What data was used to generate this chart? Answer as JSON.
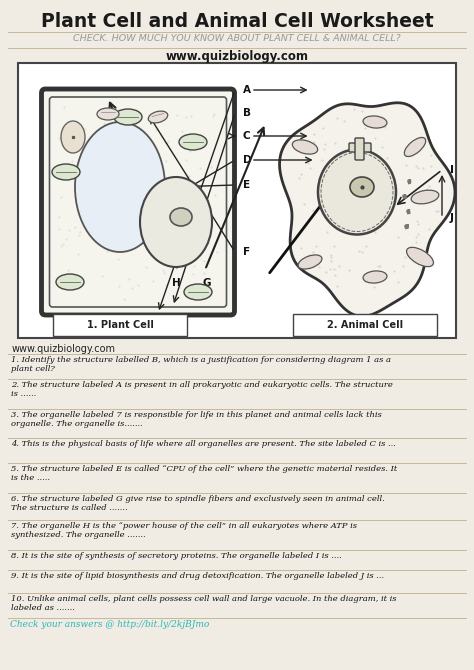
{
  "title": "Plant Cell and Animal Cell Worksheet",
  "subtitle": "CHECK. HOW MUCH YOU KNOW ABOUT PLANT CELL & ANIMAL CELL?",
  "website": "www.quizbiology.com",
  "website2": "www.quizbiology.com",
  "bg_color": "#f0ece4",
  "title_color": "#1a1a1a",
  "subtitle_color": "#999999",
  "website_color": "#1a1a1a",
  "line_color": "#c8b89a",
  "footer_color": "#2ab8b8",
  "box_color": "#ffffff",
  "cell_edge": "#333333",
  "questions": [
    "1. Identify the structure labelled B, which is a justification for considering diagram 1 as a\nplant cell?",
    "2. The structure labeled A is present in all prokaryotic and eukaryotic cells. The structure\nis ......",
    "3. The organelle labeled 7 is responsible for life in this planet and animal cells lack this\norganelle. The organelle is.......",
    "4. This is the physical basis of life where all organelles are present. The site labeled C is ...",
    "5. The structure labeled E is called “CPU of the cell” where the genetic material resides. It\nis the .....",
    "6. The structure labeled G give rise to spindle fibers and exclusively seen in animal cell.\nThe structure is called .......",
    "7. The organelle H is the “power house of the cell” in all eukaryotes where ATP is\nsynthesized. The organelle .......",
    "8. It is the site of synthesis of secretory proteins. The organelle labeled I is ....",
    "9. It is the site of lipid biosynthesis and drug detoxification. The organelle labeled J is ...",
    "10. Unlike animal cells, plant cells possess cell wall and large vacuole. In the diagram, it is\nlabeled as ......."
  ],
  "footer_text": "Check your answers @ http://bit.ly/2kjBJmo",
  "label_letters": [
    "A",
    "B",
    "C",
    "D",
    "E",
    "F",
    "G",
    "H",
    "I",
    "J"
  ]
}
